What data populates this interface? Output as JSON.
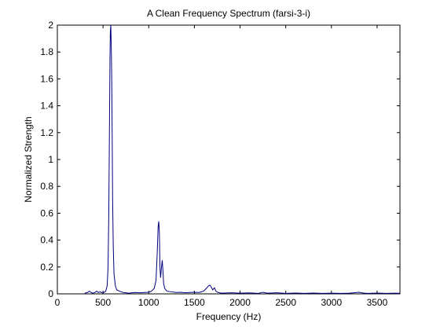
{
  "chart_data": {
    "type": "line",
    "title": "A Clean Frequency Spectrum (farsi-3-i)",
    "xlabel": "Frequency (Hz)",
    "ylabel": "Normalized Strength",
    "xlim": [
      0,
      3750
    ],
    "ylim": [
      0,
      2
    ],
    "x_ticks": [
      0,
      500,
      1000,
      1500,
      2000,
      2500,
      3000,
      3500
    ],
    "y_ticks": [
      0,
      0.2,
      0.4,
      0.6,
      0.8,
      1,
      1.2,
      1.4,
      1.6,
      1.8,
      2
    ],
    "x_tick_labels": [
      "0",
      "500",
      "1000",
      "1500",
      "2000",
      "2500",
      "3000",
      "3500"
    ],
    "y_tick_labels": [
      "0",
      "0.2",
      "0.4",
      "0.6",
      "0.8",
      "1",
      "1.2",
      "1.4",
      "1.6",
      "1.8",
      "2"
    ],
    "grid": false,
    "line_color": "#00007f",
    "series": [
      {
        "values": [
          [
            300,
            0.005
          ],
          [
            330,
            0.01
          ],
          [
            350,
            0.02
          ],
          [
            370,
            0.01
          ],
          [
            390,
            0.005
          ],
          [
            410,
            0.01
          ],
          [
            430,
            0.02
          ],
          [
            450,
            0.01
          ],
          [
            470,
            0.015
          ],
          [
            490,
            0.008
          ],
          [
            510,
            0.01
          ],
          [
            530,
            0.02
          ],
          [
            545,
            0.06
          ],
          [
            555,
            0.2
          ],
          [
            563,
            0.6
          ],
          [
            570,
            1.2
          ],
          [
            576,
            1.75
          ],
          [
            580,
            1.95
          ],
          [
            585,
            2.05
          ],
          [
            590,
            1.85
          ],
          [
            595,
            1.6
          ],
          [
            600,
            1.2
          ],
          [
            605,
            0.7
          ],
          [
            612,
            0.35
          ],
          [
            620,
            0.15
          ],
          [
            635,
            0.06
          ],
          [
            650,
            0.03
          ],
          [
            680,
            0.02
          ],
          [
            720,
            0.01
          ],
          [
            780,
            0.005
          ],
          [
            850,
            0.01
          ],
          [
            900,
            0.008
          ],
          [
            950,
            0.01
          ],
          [
            1000,
            0.012
          ],
          [
            1030,
            0.02
          ],
          [
            1060,
            0.04
          ],
          [
            1080,
            0.1
          ],
          [
            1093,
            0.3
          ],
          [
            1103,
            0.5
          ],
          [
            1110,
            0.54
          ],
          [
            1117,
            0.45
          ],
          [
            1123,
            0.2
          ],
          [
            1130,
            0.12
          ],
          [
            1140,
            0.2
          ],
          [
            1148,
            0.25
          ],
          [
            1155,
            0.18
          ],
          [
            1163,
            0.08
          ],
          [
            1175,
            0.04
          ],
          [
            1200,
            0.02
          ],
          [
            1250,
            0.015
          ],
          [
            1300,
            0.01
          ],
          [
            1350,
            0.012
          ],
          [
            1400,
            0.008
          ],
          [
            1450,
            0.01
          ],
          [
            1500,
            0.012
          ],
          [
            1550,
            0.01
          ],
          [
            1600,
            0.02
          ],
          [
            1630,
            0.04
          ],
          [
            1655,
            0.06
          ],
          [
            1670,
            0.065
          ],
          [
            1685,
            0.05
          ],
          [
            1700,
            0.03
          ],
          [
            1720,
            0.045
          ],
          [
            1735,
            0.02
          ],
          [
            1760,
            0.01
          ],
          [
            1800,
            0.005
          ],
          [
            1900,
            0.008
          ],
          [
            2000,
            0.005
          ],
          [
            2100,
            0.007
          ],
          [
            2200,
            0.004
          ],
          [
            2250,
            0.012
          ],
          [
            2300,
            0.005
          ],
          [
            2400,
            0.008
          ],
          [
            2500,
            0.004
          ],
          [
            2600,
            0.006
          ],
          [
            2700,
            0.004
          ],
          [
            2800,
            0.006
          ],
          [
            2900,
            0.004
          ],
          [
            3000,
            0.005
          ],
          [
            3100,
            0.004
          ],
          [
            3200,
            0.005
          ],
          [
            3300,
            0.012
          ],
          [
            3350,
            0.006
          ],
          [
            3400,
            0.004
          ],
          [
            3500,
            0.006
          ],
          [
            3600,
            0.004
          ],
          [
            3700,
            0.005
          ],
          [
            3750,
            0.004
          ]
        ]
      }
    ]
  }
}
